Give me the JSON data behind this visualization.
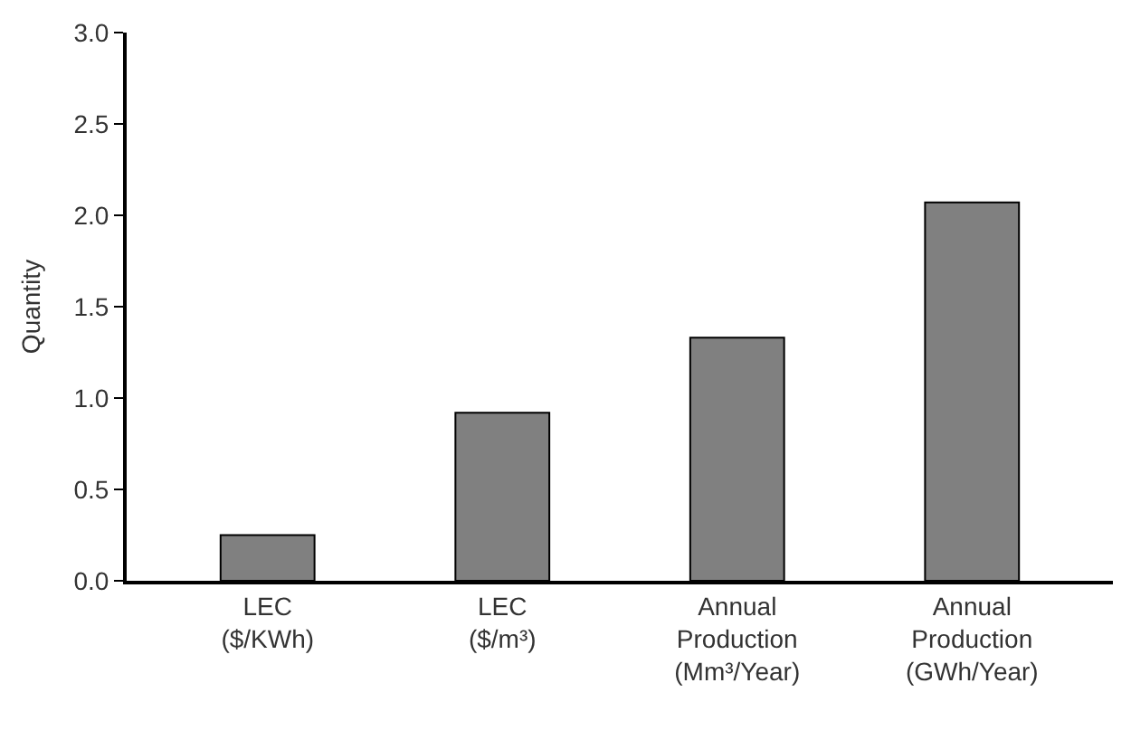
{
  "chart_data": {
    "type": "bar",
    "ylabel": "Quantity",
    "categories": [
      "LEC\n($/KWh)",
      "LEC\n($/m³)",
      "Annual\nProduction\n(Mm³/Year)",
      "Annual\nProduction\n(GWh/Year)"
    ],
    "values": [
      0.25,
      0.92,
      1.33,
      2.07
    ],
    "color": "#808080",
    "ylim": [
      0,
      3.0
    ],
    "yticks": [
      {
        "value": 0,
        "label": "0.0"
      },
      {
        "value": 0.5,
        "label": "0.5"
      },
      {
        "value": 1,
        "label": "1.0"
      },
      {
        "value": 1.5,
        "label": "1.5"
      },
      {
        "value": 2,
        "label": "2.0"
      },
      {
        "value": 2.5,
        "label": "2.5"
      },
      {
        "value": 3,
        "label": "3.0"
      }
    ]
  }
}
